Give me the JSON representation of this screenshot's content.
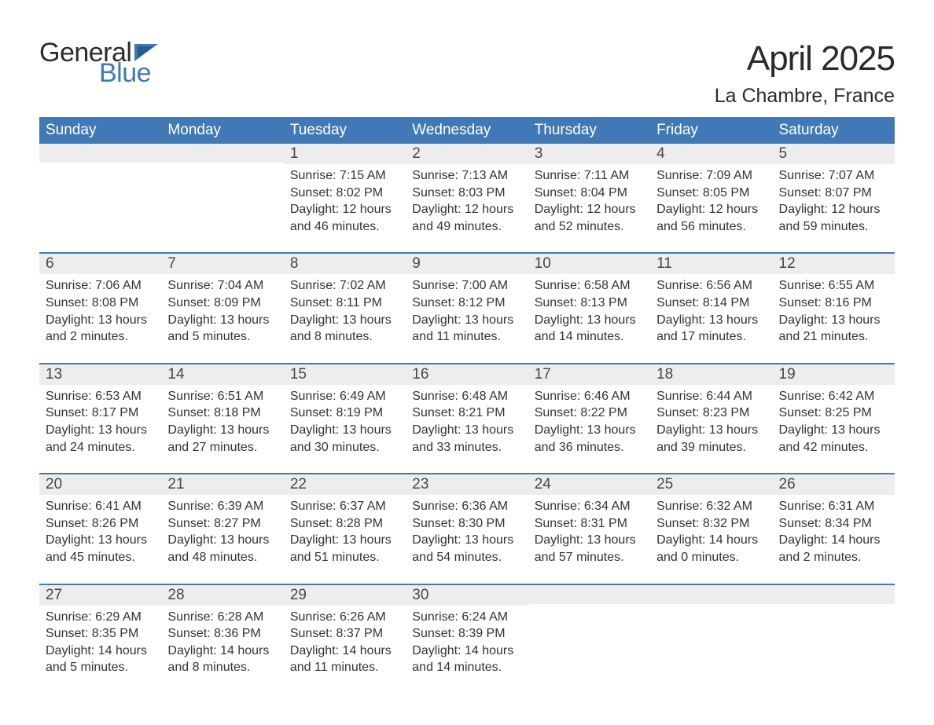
{
  "brand": {
    "word1": "General",
    "word2": "Blue",
    "word1_color": "#2b2b2b",
    "word2_color": "#4179b6"
  },
  "title": "April 2025",
  "location": "La Chambre, France",
  "colors": {
    "header_bg": "#4179b6",
    "header_text": "#ffffff",
    "daynum_bg": "#ededed",
    "row_divider": "#4179b6",
    "text": "#333333"
  },
  "day_headers": [
    "Sunday",
    "Monday",
    "Tuesday",
    "Wednesday",
    "Thursday",
    "Friday",
    "Saturday"
  ],
  "weeks": [
    [
      {
        "num": "",
        "sunrise": "",
        "sunset": "",
        "daylight1": "",
        "daylight2": ""
      },
      {
        "num": "",
        "sunrise": "",
        "sunset": "",
        "daylight1": "",
        "daylight2": ""
      },
      {
        "num": "1",
        "sunrise": "Sunrise: 7:15 AM",
        "sunset": "Sunset: 8:02 PM",
        "daylight1": "Daylight: 12 hours",
        "daylight2": "and 46 minutes."
      },
      {
        "num": "2",
        "sunrise": "Sunrise: 7:13 AM",
        "sunset": "Sunset: 8:03 PM",
        "daylight1": "Daylight: 12 hours",
        "daylight2": "and 49 minutes."
      },
      {
        "num": "3",
        "sunrise": "Sunrise: 7:11 AM",
        "sunset": "Sunset: 8:04 PM",
        "daylight1": "Daylight: 12 hours",
        "daylight2": "and 52 minutes."
      },
      {
        "num": "4",
        "sunrise": "Sunrise: 7:09 AM",
        "sunset": "Sunset: 8:05 PM",
        "daylight1": "Daylight: 12 hours",
        "daylight2": "and 56 minutes."
      },
      {
        "num": "5",
        "sunrise": "Sunrise: 7:07 AM",
        "sunset": "Sunset: 8:07 PM",
        "daylight1": "Daylight: 12 hours",
        "daylight2": "and 59 minutes."
      }
    ],
    [
      {
        "num": "6",
        "sunrise": "Sunrise: 7:06 AM",
        "sunset": "Sunset: 8:08 PM",
        "daylight1": "Daylight: 13 hours",
        "daylight2": "and 2 minutes."
      },
      {
        "num": "7",
        "sunrise": "Sunrise: 7:04 AM",
        "sunset": "Sunset: 8:09 PM",
        "daylight1": "Daylight: 13 hours",
        "daylight2": "and 5 minutes."
      },
      {
        "num": "8",
        "sunrise": "Sunrise: 7:02 AM",
        "sunset": "Sunset: 8:11 PM",
        "daylight1": "Daylight: 13 hours",
        "daylight2": "and 8 minutes."
      },
      {
        "num": "9",
        "sunrise": "Sunrise: 7:00 AM",
        "sunset": "Sunset: 8:12 PM",
        "daylight1": "Daylight: 13 hours",
        "daylight2": "and 11 minutes."
      },
      {
        "num": "10",
        "sunrise": "Sunrise: 6:58 AM",
        "sunset": "Sunset: 8:13 PM",
        "daylight1": "Daylight: 13 hours",
        "daylight2": "and 14 minutes."
      },
      {
        "num": "11",
        "sunrise": "Sunrise: 6:56 AM",
        "sunset": "Sunset: 8:14 PM",
        "daylight1": "Daylight: 13 hours",
        "daylight2": "and 17 minutes."
      },
      {
        "num": "12",
        "sunrise": "Sunrise: 6:55 AM",
        "sunset": "Sunset: 8:16 PM",
        "daylight1": "Daylight: 13 hours",
        "daylight2": "and 21 minutes."
      }
    ],
    [
      {
        "num": "13",
        "sunrise": "Sunrise: 6:53 AM",
        "sunset": "Sunset: 8:17 PM",
        "daylight1": "Daylight: 13 hours",
        "daylight2": "and 24 minutes."
      },
      {
        "num": "14",
        "sunrise": "Sunrise: 6:51 AM",
        "sunset": "Sunset: 8:18 PM",
        "daylight1": "Daylight: 13 hours",
        "daylight2": "and 27 minutes."
      },
      {
        "num": "15",
        "sunrise": "Sunrise: 6:49 AM",
        "sunset": "Sunset: 8:19 PM",
        "daylight1": "Daylight: 13 hours",
        "daylight2": "and 30 minutes."
      },
      {
        "num": "16",
        "sunrise": "Sunrise: 6:48 AM",
        "sunset": "Sunset: 8:21 PM",
        "daylight1": "Daylight: 13 hours",
        "daylight2": "and 33 minutes."
      },
      {
        "num": "17",
        "sunrise": "Sunrise: 6:46 AM",
        "sunset": "Sunset: 8:22 PM",
        "daylight1": "Daylight: 13 hours",
        "daylight2": "and 36 minutes."
      },
      {
        "num": "18",
        "sunrise": "Sunrise: 6:44 AM",
        "sunset": "Sunset: 8:23 PM",
        "daylight1": "Daylight: 13 hours",
        "daylight2": "and 39 minutes."
      },
      {
        "num": "19",
        "sunrise": "Sunrise: 6:42 AM",
        "sunset": "Sunset: 8:25 PM",
        "daylight1": "Daylight: 13 hours",
        "daylight2": "and 42 minutes."
      }
    ],
    [
      {
        "num": "20",
        "sunrise": "Sunrise: 6:41 AM",
        "sunset": "Sunset: 8:26 PM",
        "daylight1": "Daylight: 13 hours",
        "daylight2": "and 45 minutes."
      },
      {
        "num": "21",
        "sunrise": "Sunrise: 6:39 AM",
        "sunset": "Sunset: 8:27 PM",
        "daylight1": "Daylight: 13 hours",
        "daylight2": "and 48 minutes."
      },
      {
        "num": "22",
        "sunrise": "Sunrise: 6:37 AM",
        "sunset": "Sunset: 8:28 PM",
        "daylight1": "Daylight: 13 hours",
        "daylight2": "and 51 minutes."
      },
      {
        "num": "23",
        "sunrise": "Sunrise: 6:36 AM",
        "sunset": "Sunset: 8:30 PM",
        "daylight1": "Daylight: 13 hours",
        "daylight2": "and 54 minutes."
      },
      {
        "num": "24",
        "sunrise": "Sunrise: 6:34 AM",
        "sunset": "Sunset: 8:31 PM",
        "daylight1": "Daylight: 13 hours",
        "daylight2": "and 57 minutes."
      },
      {
        "num": "25",
        "sunrise": "Sunrise: 6:32 AM",
        "sunset": "Sunset: 8:32 PM",
        "daylight1": "Daylight: 14 hours",
        "daylight2": "and 0 minutes."
      },
      {
        "num": "26",
        "sunrise": "Sunrise: 6:31 AM",
        "sunset": "Sunset: 8:34 PM",
        "daylight1": "Daylight: 14 hours",
        "daylight2": "and 2 minutes."
      }
    ],
    [
      {
        "num": "27",
        "sunrise": "Sunrise: 6:29 AM",
        "sunset": "Sunset: 8:35 PM",
        "daylight1": "Daylight: 14 hours",
        "daylight2": "and 5 minutes."
      },
      {
        "num": "28",
        "sunrise": "Sunrise: 6:28 AM",
        "sunset": "Sunset: 8:36 PM",
        "daylight1": "Daylight: 14 hours",
        "daylight2": "and 8 minutes."
      },
      {
        "num": "29",
        "sunrise": "Sunrise: 6:26 AM",
        "sunset": "Sunset: 8:37 PM",
        "daylight1": "Daylight: 14 hours",
        "daylight2": "and 11 minutes."
      },
      {
        "num": "30",
        "sunrise": "Sunrise: 6:24 AM",
        "sunset": "Sunset: 8:39 PM",
        "daylight1": "Daylight: 14 hours",
        "daylight2": "and 14 minutes."
      },
      {
        "num": "",
        "sunrise": "",
        "sunset": "",
        "daylight1": "",
        "daylight2": ""
      },
      {
        "num": "",
        "sunrise": "",
        "sunset": "",
        "daylight1": "",
        "daylight2": ""
      },
      {
        "num": "",
        "sunrise": "",
        "sunset": "",
        "daylight1": "",
        "daylight2": ""
      }
    ]
  ]
}
